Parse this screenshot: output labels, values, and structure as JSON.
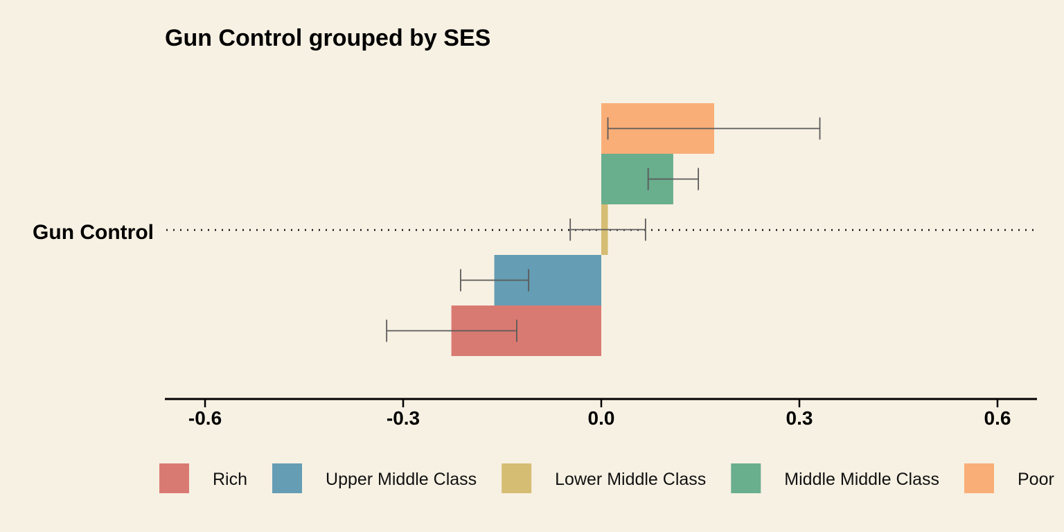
{
  "chart_data": {
    "type": "bar",
    "orientation": "horizontal",
    "title": "Gun Control grouped by SES",
    "categories": [
      "Gun Control"
    ],
    "xlim": [
      -0.66,
      0.66
    ],
    "x_ticks": [
      -0.6,
      -0.3,
      0.0,
      0.3,
      0.6
    ],
    "x_tick_labels": [
      "-0.6",
      "-0.3",
      "0.0",
      "0.3",
      "0.6"
    ],
    "xlabel": "",
    "ylabel": "",
    "grid": false,
    "zero_reference_line": "dotted",
    "legend_position": "bottom",
    "series": [
      {
        "name": "Rich",
        "color": "#d97a72",
        "values": [
          -0.227
        ],
        "ci_low": [
          -0.325
        ],
        "ci_high": [
          -0.128
        ]
      },
      {
        "name": "Upper Middle Class",
        "color": "#659db4",
        "values": [
          -0.162
        ],
        "ci_low": [
          -0.213
        ],
        "ci_high": [
          -0.11
        ]
      },
      {
        "name": "Lower Middle Class",
        "color": "#d6bd74",
        "values": [
          0.01
        ],
        "ci_low": [
          -0.047
        ],
        "ci_high": [
          0.067
        ]
      },
      {
        "name": "Middle Middle Class",
        "color": "#69ae8d",
        "values": [
          0.109
        ],
        "ci_low": [
          0.071
        ],
        "ci_high": [
          0.147
        ]
      },
      {
        "name": "Poor",
        "color": "#f9ae77",
        "values": [
          0.171
        ],
        "ci_low": [
          0.01
        ],
        "ci_high": [
          0.331
        ]
      }
    ]
  }
}
